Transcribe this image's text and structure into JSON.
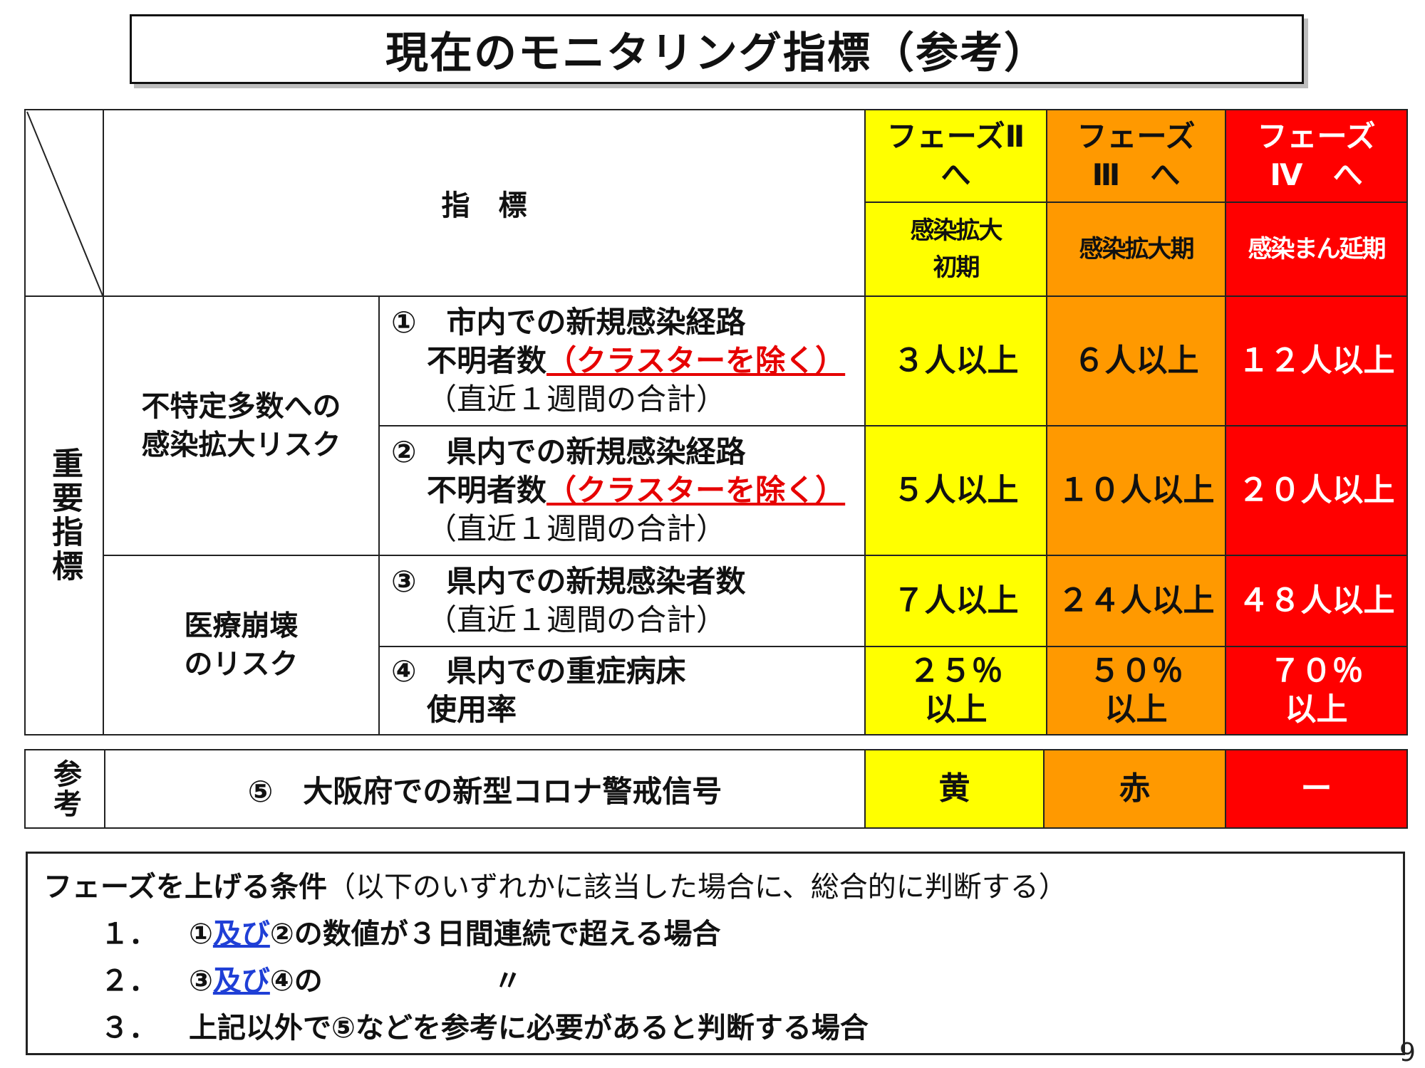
{
  "title": "現在のモニタリング指標（参考）",
  "header": {
    "indicator_label": "指　標",
    "phases": [
      {
        "label_line1": "フェーズⅡ",
        "label_line2": "へ",
        "sub_line1": "感染拡大",
        "sub_line2": "初期",
        "color": "#ffff00"
      },
      {
        "label_line1": "フェーズ",
        "label_line2": "Ⅲ　へ",
        "sub_line1": "感染拡大期",
        "sub_line2": "",
        "color": "#ff9900"
      },
      {
        "label_line1": "フェーズ",
        "label_line2": "Ⅳ　へ",
        "sub_line1": "感染まん延期",
        "sub_line2": "",
        "color": "#ff0000"
      }
    ]
  },
  "section_label": "重要指標",
  "categories": [
    {
      "line1": "不特定多数への",
      "line2": "感染拡大リスク"
    },
    {
      "line1": "医療崩壊",
      "line2": "のリスク"
    }
  ],
  "indicators": [
    {
      "line1": "①　市内での新規感染経路",
      "line2": "不明者数",
      "exclusion": "（クラスターを除く）",
      "note": "（直近１週間の合計）",
      "values": [
        "３人以上",
        "６人以上",
        "１２人以上"
      ]
    },
    {
      "line1": "②　県内での新規感染経路",
      "line2": "不明者数",
      "exclusion": "（クラスターを除く）",
      "note": "（直近１週間の合計）",
      "values": [
        "５人以上",
        "１０人以上",
        "２０人以上"
      ]
    },
    {
      "line1": "③　県内での新規感染者数",
      "line2": "",
      "exclusion": "",
      "note": "（直近１週間の合計）",
      "values": [
        "７人以上",
        "２４人以上",
        "４８人以上"
      ]
    },
    {
      "line1": "④　県内での重症病床",
      "line2": "使用率",
      "exclusion": "",
      "note": "",
      "values": [
        "２５％",
        "５０％",
        "７０％"
      ],
      "values_line2": [
        "以上",
        "以上",
        "以上"
      ]
    }
  ],
  "reference": {
    "label": "参考",
    "indicator": "⑤　大阪府での新型コロナ警戒信号",
    "values": [
      "黄",
      "赤",
      "ー"
    ]
  },
  "conditions": {
    "lead": "フェーズを上げる条件",
    "note": "（以下のいずれかに該当した場合に、総合的に判断する）",
    "items": [
      {
        "num": "１．",
        "pre": "①",
        "link": "及び",
        "post": "②の数値が３日間連続で超える場合"
      },
      {
        "num": "２．",
        "pre": "③",
        "link": "及び",
        "post": "④の　　　　　　〃"
      },
      {
        "num": "３．",
        "pre": "",
        "link": "",
        "post": "上記以外で⑤などを参考に必要があると判断する場合"
      }
    ]
  },
  "page_number": "9"
}
